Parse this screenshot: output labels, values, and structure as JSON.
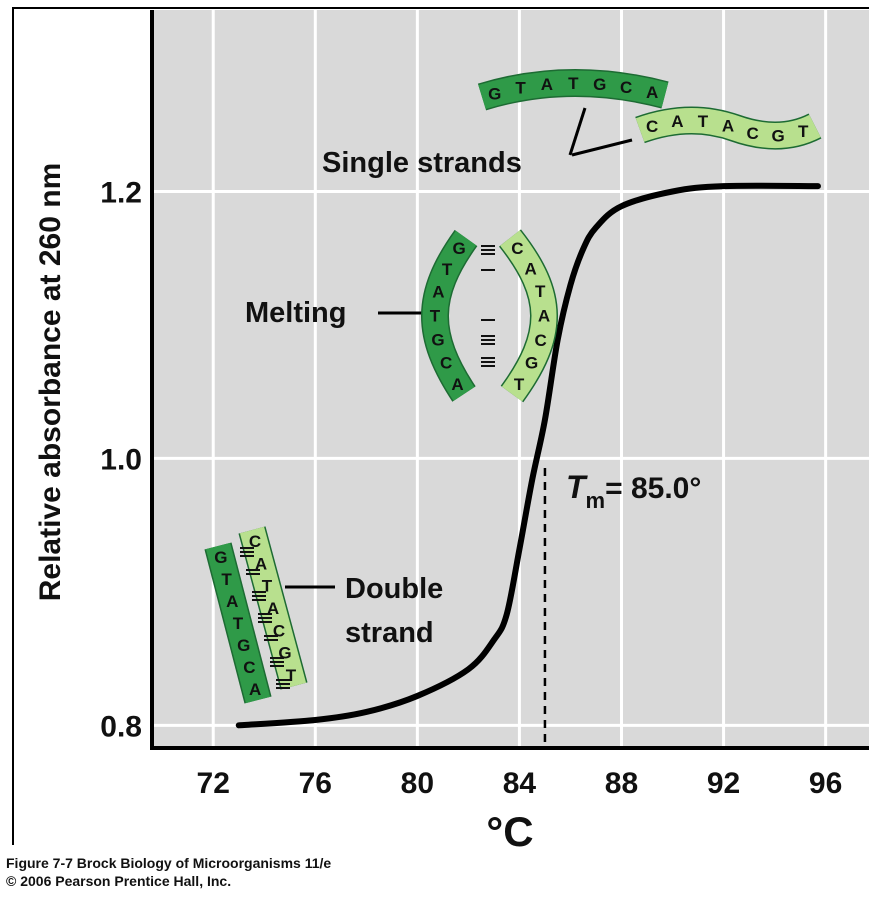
{
  "chart_data": {
    "type": "line",
    "x_label": "°C",
    "y_label": "Relative absorbance at 260 nm",
    "x": [
      73,
      76,
      78,
      80,
      82,
      83,
      83.5,
      84,
      84.5,
      85,
      85.5,
      86,
      86.5,
      87,
      88,
      90,
      92,
      95.7
    ],
    "series": [
      {
        "color": "#000000",
        "values": [
          0.8,
          0.804,
          0.81,
          0.822,
          0.842,
          0.864,
          0.883,
          0.932,
          0.984,
          1.029,
          1.089,
          1.13,
          1.157,
          1.173,
          1.189,
          1.2,
          1.204,
          1.204
        ]
      }
    ],
    "xlim": [
      69.6,
      97.7
    ],
    "ylim": [
      0.783,
      1.336
    ],
    "xticks": [
      72,
      76,
      80,
      84,
      88,
      92,
      96
    ],
    "yticks": [
      0.8,
      {
        "value": 1.0,
        "label": "1.0"
      },
      1.2
    ],
    "grid": true,
    "background": "#d9d9d9",
    "tm_x": 85,
    "annotations": {
      "tm_symbol": "T",
      "tm_subscript": "m",
      "tm_text": "= 85.0°",
      "single_strands": "Single strands",
      "melting": "Melting",
      "double": "Double",
      "strand": "strand"
    },
    "illustrations": {
      "single_strands": {
        "dark": [
          "G",
          "T",
          "A",
          "T",
          "G",
          "C",
          "A"
        ],
        "light": [
          "C",
          "A",
          "T",
          "A",
          "C",
          "G",
          "T"
        ]
      },
      "melting": {
        "dark": [
          "G",
          "T",
          "A",
          "T",
          "G",
          "C",
          "A"
        ],
        "light": [
          "C",
          "A",
          "T",
          "A",
          "C",
          "G",
          "T"
        ]
      },
      "double_strand": {
        "dark": [
          "G",
          "T",
          "A",
          "T",
          "G",
          "C",
          "A"
        ],
        "light": [
          "C",
          "A",
          "T",
          "A",
          "C",
          "G",
          "T"
        ]
      }
    }
  },
  "caption": [
    "Figure 7-7  Brock Biology of Microorganisms 11/e",
    "© 2006 Pearson Prentice Hall, Inc."
  ]
}
